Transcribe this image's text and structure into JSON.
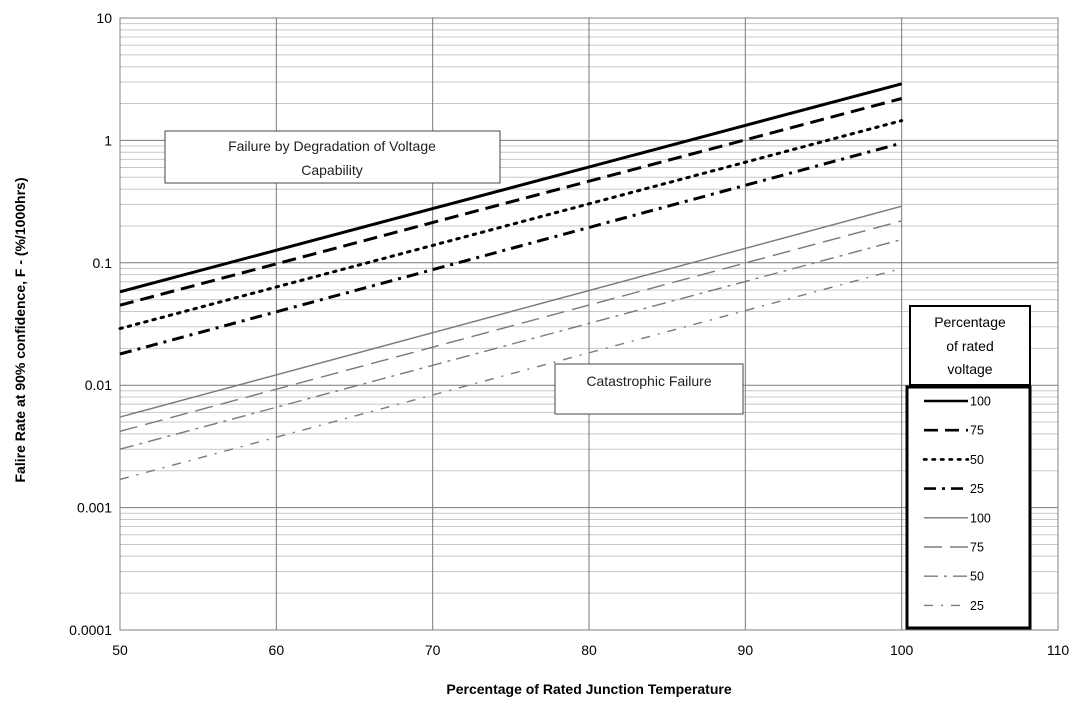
{
  "chart_data": {
    "type": "line",
    "xlabel": "Percentage of Rated Junction Temperature",
    "ylabel": "Falire Rate at 90% confidence, F - (%/1000hrs)",
    "xlim": [
      50,
      110
    ],
    "ylim": [
      0.0001,
      10
    ],
    "y_scale": "log",
    "x_ticks": [
      50,
      60,
      70,
      80,
      90,
      100,
      110
    ],
    "y_ticks": [
      {
        "value": 0.0001,
        "label": "0.0001"
      },
      {
        "value": 0.001,
        "label": "0.001"
      },
      {
        "value": 0.01,
        "label": "0.01"
      },
      {
        "value": 0.1,
        "label": "0.1"
      },
      {
        "value": 1,
        "label": "1"
      },
      {
        "value": 10,
        "label": "10"
      }
    ],
    "grid": true,
    "legend": {
      "title": "Percentage of rated voltage",
      "title_lines": [
        "Percentage",
        "of rated",
        "voltage"
      ],
      "position": "right"
    },
    "annotations": [
      {
        "lines": [
          "Failure by Degradation of Voltage",
          "Capability"
        ]
      },
      {
        "lines": [
          "Catastrophic Failure"
        ]
      }
    ],
    "x": [
      50,
      100
    ],
    "series": [
      {
        "name": "100",
        "group": "degradation",
        "values": [
          0.058,
          2.9
        ],
        "color": "#000000",
        "style": "solid",
        "weight": "bold"
      },
      {
        "name": "75",
        "group": "degradation",
        "values": [
          0.045,
          2.2
        ],
        "color": "#000000",
        "style": "dash",
        "weight": "bold"
      },
      {
        "name": "50",
        "group": "degradation",
        "values": [
          0.029,
          1.45
        ],
        "color": "#000000",
        "style": "dot",
        "weight": "bold"
      },
      {
        "name": "25",
        "group": "degradation",
        "values": [
          0.018,
          0.95
        ],
        "color": "#000000",
        "style": "dashdot",
        "weight": "bold"
      },
      {
        "name": "100",
        "group": "catastrophic",
        "values": [
          0.0055,
          0.29
        ],
        "color": "#7a7a7a",
        "style": "solid",
        "weight": "light"
      },
      {
        "name": "75",
        "group": "catastrophic",
        "values": [
          0.0042,
          0.22
        ],
        "color": "#7a7a7a",
        "style": "dash",
        "weight": "light"
      },
      {
        "name": "50",
        "group": "catastrophic",
        "values": [
          0.003,
          0.155
        ],
        "color": "#7a7a7a",
        "style": "dashdot",
        "weight": "light"
      },
      {
        "name": "25",
        "group": "catastrophic",
        "values": [
          0.0017,
          0.09
        ],
        "color": "#7a7a7a",
        "style": "dashdot2",
        "weight": "light"
      }
    ]
  }
}
